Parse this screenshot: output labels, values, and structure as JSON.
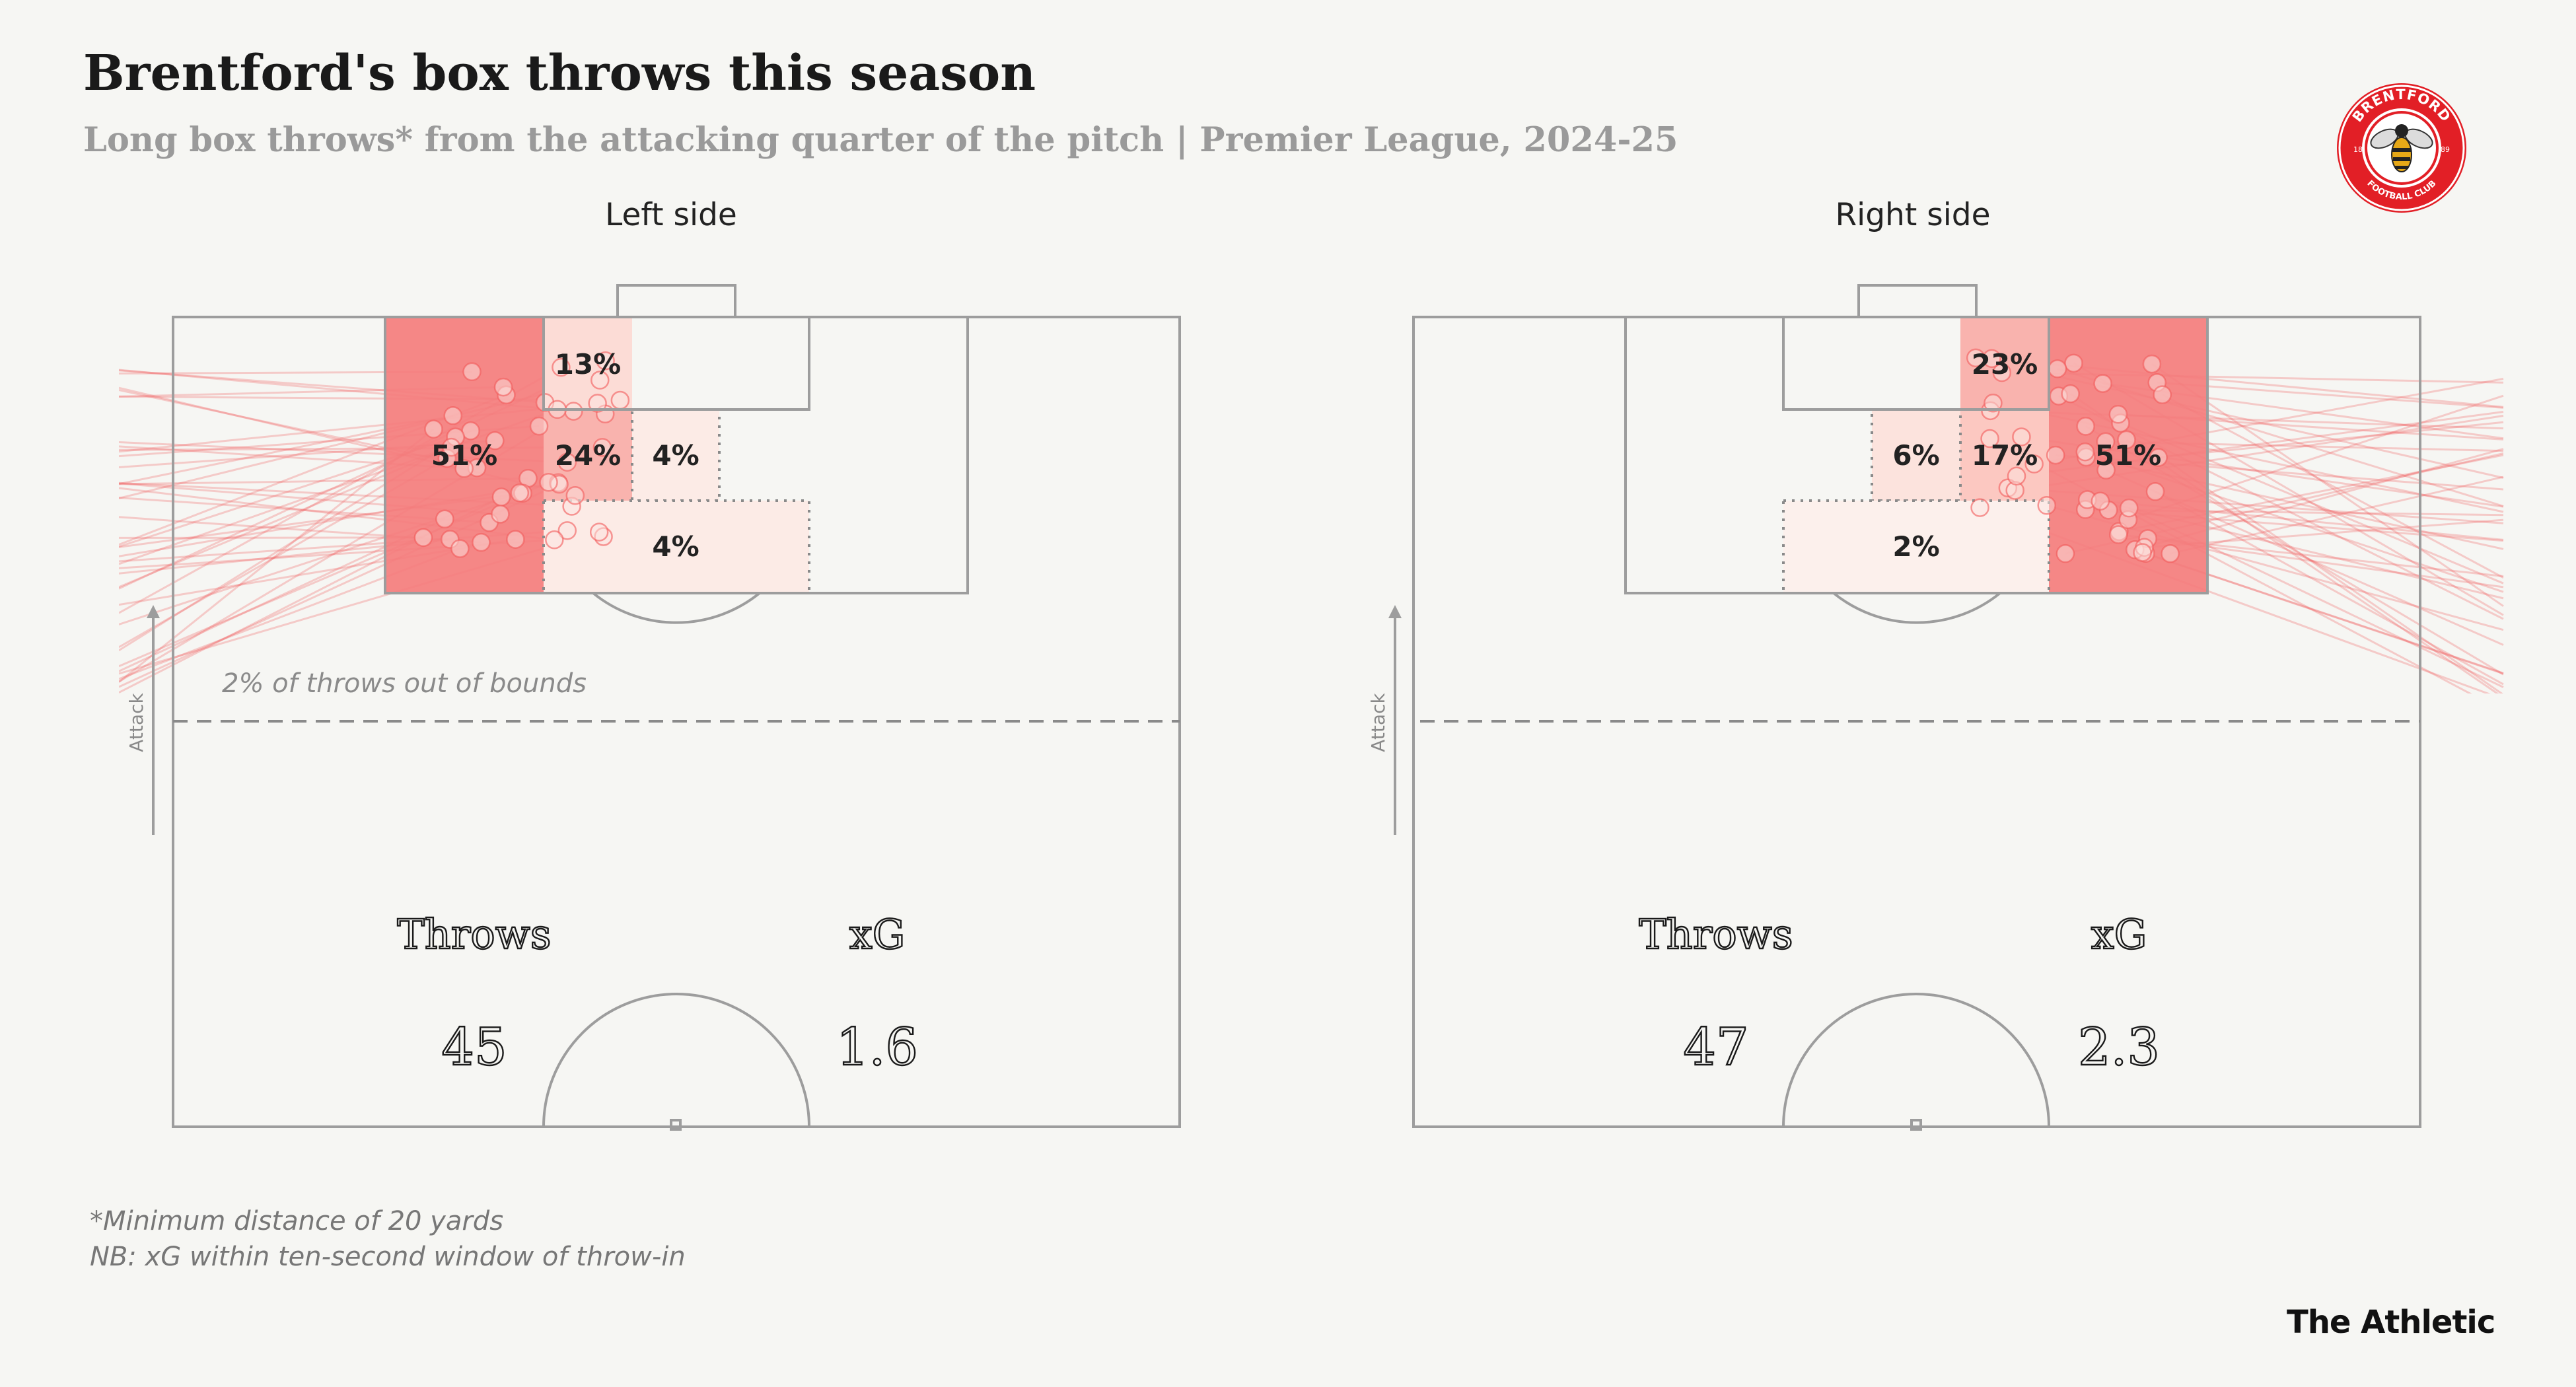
{
  "title": "Brentford's box throws this season",
  "subtitle": "Long box throws* from the attacking quarter of the pitch | Premier League, 2024-25",
  "footnotes": [
    "*Minimum distance of 20 yards",
    "NB: xG within ten-second window of throw-in"
  ],
  "brand": "The Athletic",
  "logo": {
    "top_text": "BRENTFORD",
    "bottom_text": "FOOTBALL CLUB",
    "left_num": "18",
    "right_num": "89",
    "colors": {
      "ring": "#e21f26",
      "inner": "#ffffff",
      "bee": "#e6a817"
    },
    "icon": "bee-icon"
  },
  "colors": {
    "background": "#f6f6f3",
    "pitch_line": "#9d9d9d",
    "throw_line": "#f25a5a",
    "zone_high": "#f47d7d",
    "zone_mid": "#f9b3ae",
    "zone_low": "#fcdcd6",
    "zone_min": "#fcebe6"
  },
  "chart_data": [
    {
      "type": "heatmap",
      "panel": "Left side",
      "zones": [
        {
          "label": "51%",
          "value": 51
        },
        {
          "label": "13%",
          "value": 13
        },
        {
          "label": "24%",
          "value": 24
        },
        {
          "label": "4%",
          "value": 4
        },
        {
          "label": "4%",
          "value": 4
        }
      ],
      "annotation": "2% of throws out of bounds",
      "attack_label": "Attack",
      "stats": {
        "throws_label": "Throws",
        "throws": "45",
        "xg_label": "xG",
        "xg": "1.6"
      }
    },
    {
      "type": "heatmap",
      "panel": "Right side",
      "zones": [
        {
          "label": "51%",
          "value": 51
        },
        {
          "label": "23%",
          "value": 23
        },
        {
          "label": "17%",
          "value": 17
        },
        {
          "label": "6%",
          "value": 6
        },
        {
          "label": "2%",
          "value": 2
        }
      ],
      "annotation": "",
      "attack_label": "Attack",
      "stats": {
        "throws_label": "Throws",
        "throws": "47",
        "xg_label": "xG",
        "xg": "2.3"
      }
    }
  ]
}
